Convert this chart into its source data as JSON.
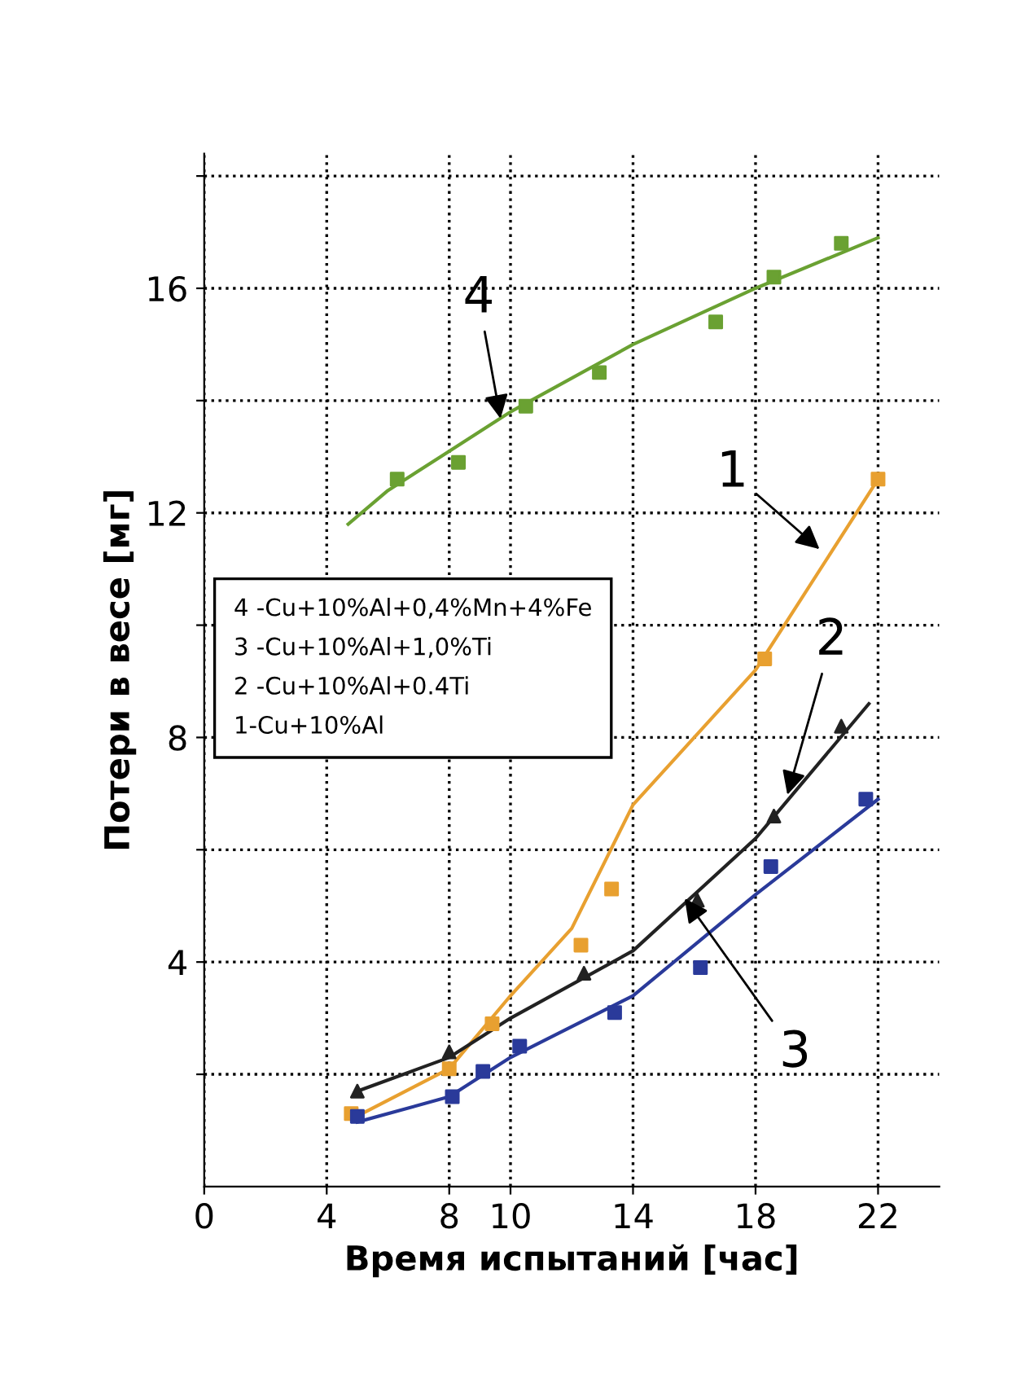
{
  "chart_data": {
    "type": "line",
    "xlabel": "Время испытаний [час]",
    "ylabel": "Потери в весе [мг]",
    "xlim": [
      0,
      24
    ],
    "ylim": [
      0,
      18.4
    ],
    "xticks": [
      0,
      4,
      8,
      10,
      14,
      18,
      22
    ],
    "yticks": [
      {
        "value": 2,
        "label": null
      },
      4,
      {
        "value": 6,
        "label": null
      },
      8,
      {
        "value": 10,
        "label": null
      },
      12,
      {
        "value": 14,
        "label": null
      },
      16,
      {
        "value": 18,
        "label": null
      }
    ],
    "grid": true,
    "line_style": "solid",
    "series": [
      {
        "color": "#6aa132",
        "x": [
          4.7,
          6,
          8,
          10,
          14,
          18,
          22
        ],
        "values": [
          11.8,
          12.4,
          13.1,
          13.8,
          15.0,
          16.0,
          16.9
        ]
      },
      {
        "type": "scatter",
        "marker": "square",
        "color": "#6aa132",
        "x": [
          6.3,
          8.3,
          10.5,
          12.9,
          16.7,
          18.6,
          20.8
        ],
        "values": [
          12.6,
          12.9,
          13.9,
          14.5,
          15.4,
          16.2,
          16.8
        ]
      },
      {
        "color": "#e8a030",
        "x": [
          4.8,
          8,
          10,
          12,
          14,
          18,
          22
        ],
        "values": [
          1.2,
          2.1,
          3.4,
          4.6,
          6.8,
          9.2,
          12.6
        ]
      },
      {
        "type": "scatter",
        "marker": "square",
        "color": "#e8a030",
        "x": [
          4.8,
          8.0,
          9.4,
          12.3,
          13.3,
          18.3,
          22
        ],
        "values": [
          1.3,
          2.1,
          2.9,
          4.3,
          5.3,
          9.4,
          12.6
        ]
      },
      {
        "color": "#222222",
        "x": [
          5,
          8,
          10,
          14,
          18,
          21.7
        ],
        "values": [
          1.7,
          2.3,
          3.0,
          4.2,
          6.2,
          8.6
        ]
      },
      {
        "type": "scatter",
        "marker": "triangle",
        "color": "#222222",
        "x": [
          5.0,
          8.0,
          12.4,
          16.1,
          18.6,
          20.8
        ],
        "values": [
          1.7,
          2.4,
          3.8,
          5.1,
          6.6,
          8.2
        ]
      },
      {
        "color": "#2a3a9a",
        "x": [
          5,
          8,
          10,
          14,
          18,
          22
        ],
        "values": [
          1.15,
          1.6,
          2.3,
          3.4,
          5.2,
          6.9
        ]
      },
      {
        "type": "scatter",
        "marker": "square",
        "color": "#2a3a9a",
        "x": [
          5.0,
          8.1,
          9.1,
          10.3,
          13.4,
          16.2,
          18.5,
          21.6
        ],
        "values": [
          1.25,
          1.6,
          2.05,
          2.5,
          3.1,
          3.9,
          5.7,
          6.9
        ]
      }
    ],
    "annotations": [
      {
        "text": "4",
        "x": 9.7,
        "y": 13.6
      },
      {
        "text": "1",
        "x": 20.2,
        "y": 11.3
      },
      {
        "text": "2",
        "x": 19.0,
        "y": 6.9
      },
      {
        "text": "3",
        "x": 15.6,
        "y": 5.2
      },
      "4 -Cu+10%Al+0,4%Mn+4%Fe",
      "3 -Cu+10%Al+1,0%Ti",
      "2 -Cu+10%Al+0.4Ti",
      "1-Cu+10%Al"
    ]
  }
}
